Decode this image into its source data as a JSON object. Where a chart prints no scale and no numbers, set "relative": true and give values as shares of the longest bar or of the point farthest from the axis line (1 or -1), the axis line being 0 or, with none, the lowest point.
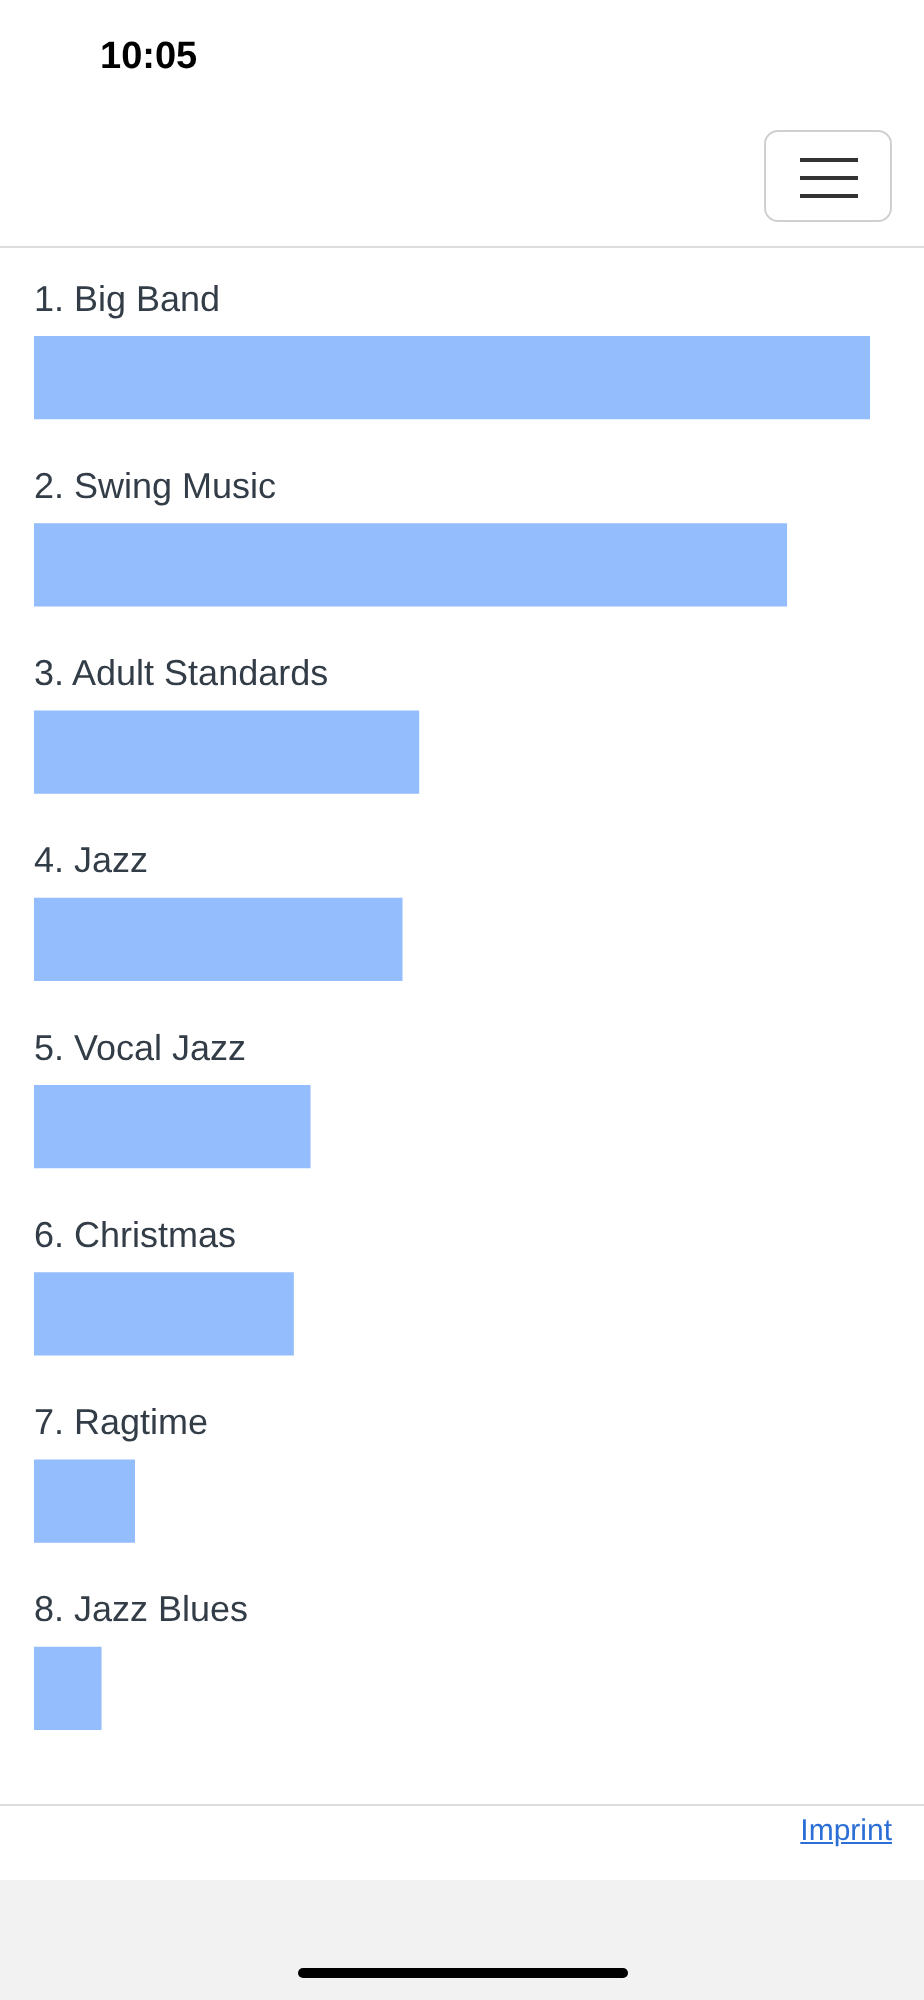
{
  "chart_data": {
    "type": "bar",
    "orientation": "horizontal",
    "relative": true,
    "categories": [
      "1. Big Band",
      "2. Swing Music",
      "3. Adult Standards",
      "4. Jazz",
      "5. Vocal Jazz",
      "6. Christmas",
      "7. Ragtime",
      "8. Jazz Blues"
    ],
    "values": [
      1,
      0.9,
      0.46,
      0.44,
      0.33,
      0.31,
      0.12,
      0.08
    ],
    "color": "#93bdfd",
    "legend": false,
    "annotations": [
      "10:05",
      "Imprint"
    ]
  }
}
